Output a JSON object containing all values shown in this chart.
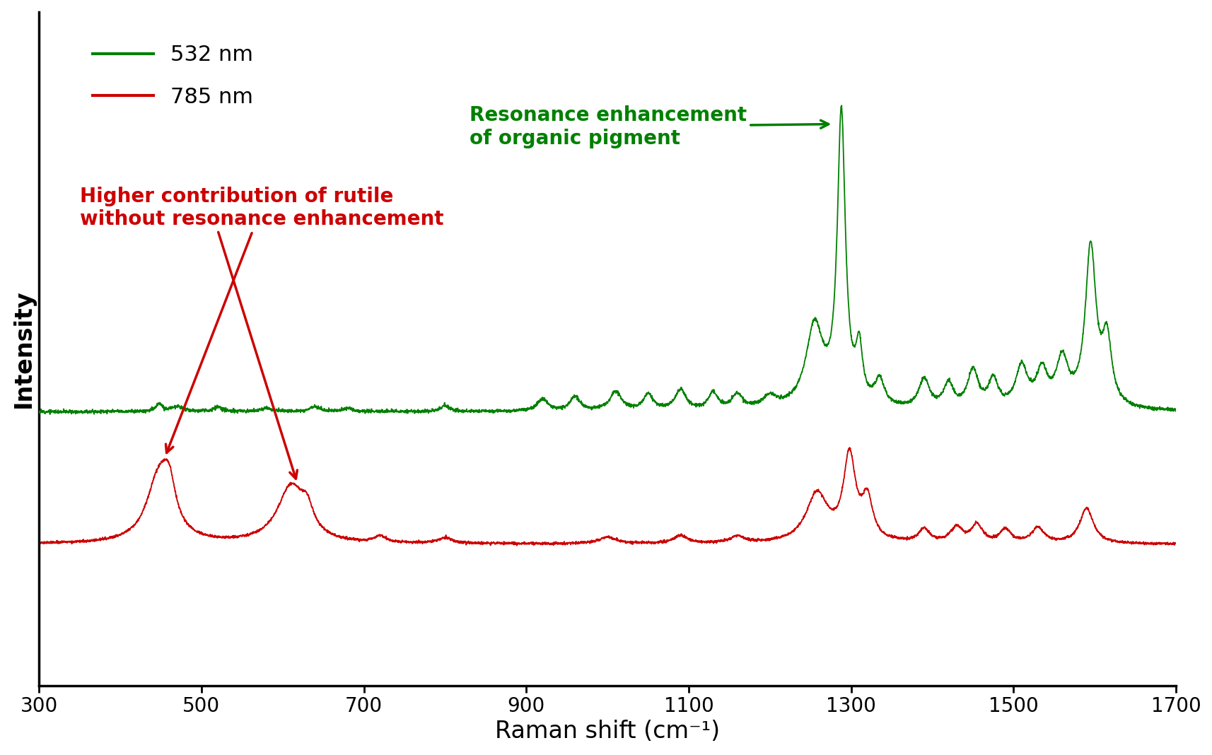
{
  "green_color": "#008000",
  "red_color": "#CC0000",
  "xlabel": "Raman shift (cm⁻¹)",
  "ylabel": "Intensity",
  "xlim": [
    300,
    1700
  ],
  "legend_532": "532 nm",
  "legend_785": "785 nm",
  "annotation_green": "Resonance enhancement\nof organic pigment",
  "annotation_red": "Higher contribution of rutile\nwithout resonance enhancement",
  "background_color": "#ffffff",
  "label_fontsize": 24,
  "tick_fontsize": 20,
  "legend_fontsize": 22,
  "annotation_fontsize": 20
}
